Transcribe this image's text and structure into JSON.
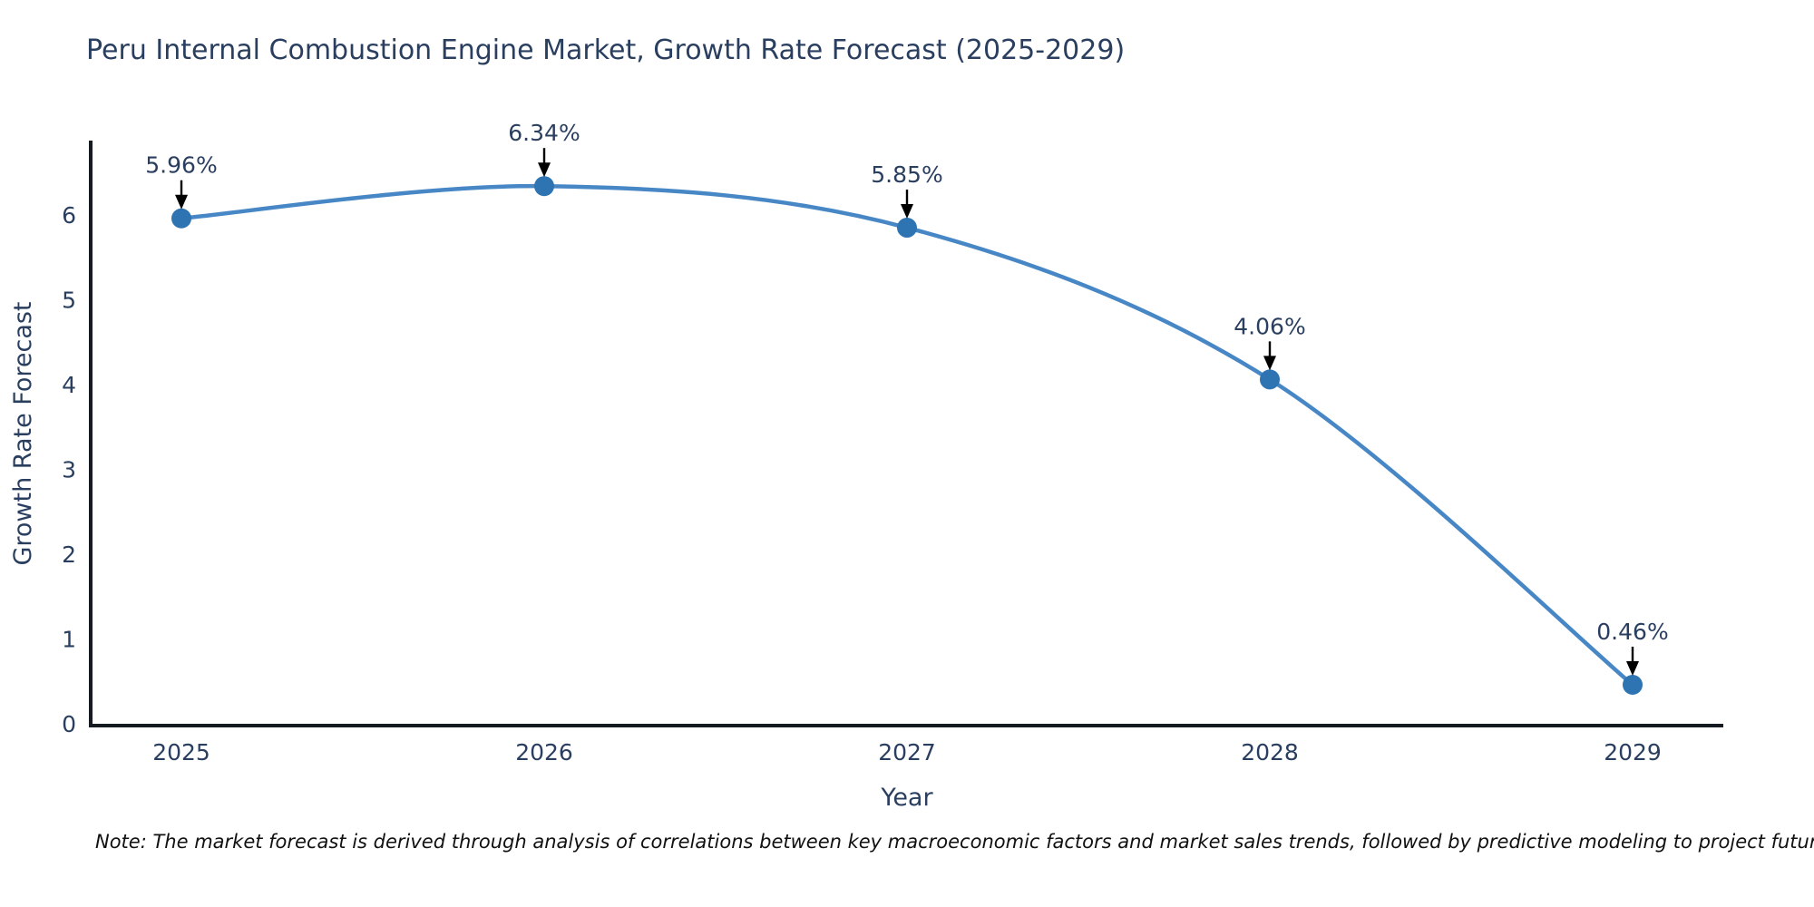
{
  "note": "Note: The market forecast is derived through analysis of correlations between key macroeconomic factors and market sales trends, followed by predictive modeling to project future sales.",
  "chart_data": {
    "type": "line",
    "title": "Peru Internal Combustion Engine Market, Growth Rate Forecast (2025-2029)",
    "xlabel": "Year",
    "ylabel": "Growth Rate Forecast",
    "categories": [
      "2025",
      "2026",
      "2027",
      "2028",
      "2029"
    ],
    "series": [
      {
        "name": "Growth Rate Forecast",
        "values": [
          5.96,
          6.34,
          5.85,
          4.06,
          0.46
        ]
      }
    ],
    "point_labels": [
      "5.96%",
      "6.34%",
      "5.85%",
      "4.06%",
      "0.46%"
    ],
    "ylim": [
      0,
      6.9
    ],
    "yticks": [
      0,
      1,
      2,
      3,
      4,
      5,
      6
    ],
    "grid": false,
    "legend": "none",
    "line_shape": "spline",
    "annotations": "value label with black arrow pointing down at each data point",
    "colors": {
      "line": "#4887c5",
      "marker": "#2e74b2",
      "axis": "#161a21",
      "text": "#2a3f5f",
      "annotation_text": "#2a3f5f",
      "arrow": "#000000",
      "background": "#ffffff"
    }
  }
}
